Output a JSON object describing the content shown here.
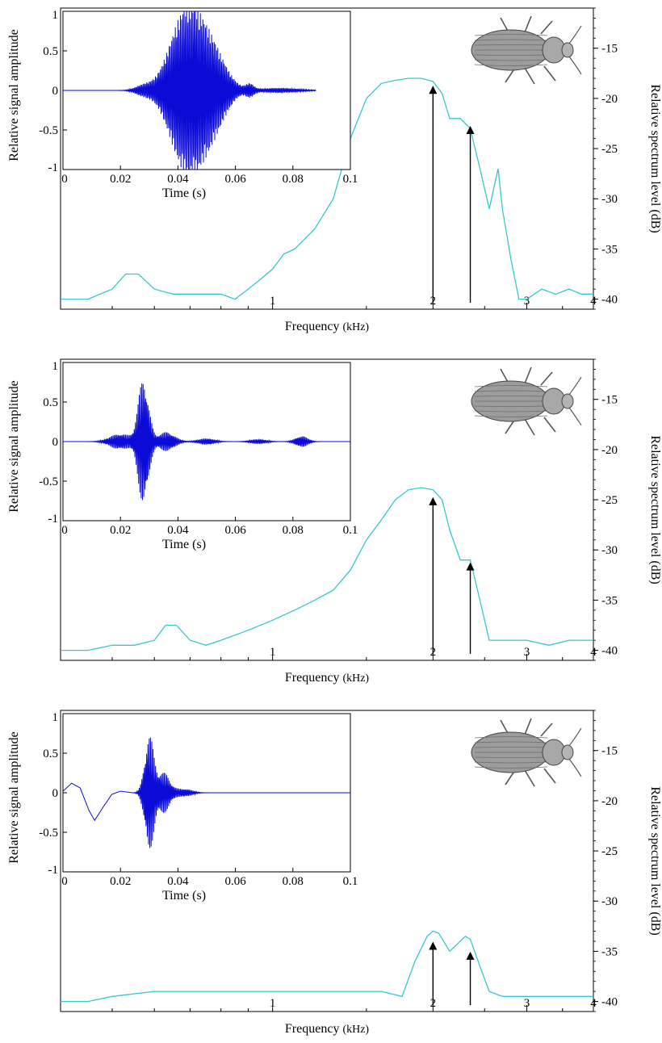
{
  "chart_data": [
    {
      "type": "line",
      "panel": "top",
      "spectrum": {
        "xlabel_main": "Frequency",
        "xlabel_unit": "(kHz)",
        "ylabel": "Relative spectrum level (dB)",
        "x_scale": "log",
        "xlim": [
          0.4,
          4
        ],
        "ylim": [
          -41,
          -11
        ],
        "xticks": [
          1,
          2,
          3,
          4
        ],
        "xtick_labels": [
          "1",
          "2",
          "3",
          "4"
        ],
        "yticks": [
          -15,
          -20,
          -25,
          -30,
          -35,
          -40
        ],
        "ytick_labels": [
          "-15",
          "-20",
          "-25",
          "-30",
          "-35",
          "-40"
        ],
        "x": [
          0.4,
          0.45,
          0.5,
          0.53,
          0.56,
          0.6,
          0.65,
          0.7,
          0.75,
          0.8,
          0.85,
          0.9,
          0.95,
          1.0,
          1.05,
          1.1,
          1.2,
          1.3,
          1.4,
          1.5,
          1.6,
          1.7,
          1.8,
          1.9,
          2.0,
          2.08,
          2.15,
          2.25,
          2.35,
          2.45,
          2.55,
          2.6,
          2.65,
          2.7,
          2.8,
          2.9,
          3.0,
          3.2,
          3.4,
          3.6,
          3.8,
          4.0
        ],
        "y": [
          -40,
          -40,
          -39,
          -37.5,
          -37.5,
          -39,
          -39.5,
          -39.5,
          -39.5,
          -39.5,
          -40,
          -39,
          -38,
          -37,
          -35.5,
          -35,
          -33,
          -30,
          -24,
          -20,
          -18.5,
          -18.2,
          -18.0,
          -18.0,
          -18.3,
          -19.5,
          -22,
          -22,
          -23,
          -27,
          -31,
          -29,
          -27,
          -31,
          -36,
          -40,
          -40,
          -39,
          -39.5,
          -39,
          -39.5,
          -39.5
        ],
        "arrows": [
          2.0,
          2.35
        ],
        "arrow_levels": [
          -18.5,
          -22.5
        ]
      },
      "inset": {
        "xlabel": "Time (s)",
        "ylabel": "Relative signal amplitude",
        "xlim": [
          0,
          0.1
        ],
        "ylim": [
          -1,
          1
        ],
        "xticks": [
          0,
          0.02,
          0.04,
          0.06,
          0.08,
          0.1
        ],
        "xtick_labels": [
          "0",
          "0.02",
          "0.04",
          "0.06",
          "0.08",
          "0.1"
        ],
        "yticks": [
          1,
          0.5,
          0,
          -0.5,
          -1
        ],
        "ytick_labels": [
          "1",
          "0.5",
          "0",
          "-0.5",
          "-1"
        ],
        "bursts": [
          {
            "center": 0.028,
            "width": 0.004,
            "amp": 0.06
          },
          {
            "center": 0.043,
            "width": 0.008,
            "amp": 1.0
          },
          {
            "center": 0.052,
            "width": 0.007,
            "amp": 0.42
          },
          {
            "center": 0.065,
            "width": 0.002,
            "amp": 0.07
          },
          {
            "center": 0.075,
            "width": 0.01,
            "amp": 0.03
          }
        ]
      }
    },
    {
      "type": "line",
      "panel": "middle",
      "spectrum": {
        "xlabel_main": "Frequency",
        "xlabel_unit": "(kHz)",
        "ylabel": "Relative spectrum level (dB)",
        "x_scale": "log",
        "xlim": [
          0.4,
          4
        ],
        "ylim": [
          -41,
          -11
        ],
        "xticks": [
          1,
          2,
          3,
          4
        ],
        "xtick_labels": [
          "1",
          "2",
          "3",
          "4"
        ],
        "yticks": [
          -15,
          -20,
          -25,
          -30,
          -35,
          -40
        ],
        "ytick_labels": [
          "-15",
          "-20",
          "-25",
          "-30",
          "-35",
          "-40"
        ],
        "x": [
          0.4,
          0.45,
          0.5,
          0.55,
          0.6,
          0.63,
          0.66,
          0.7,
          0.75,
          0.8,
          0.9,
          1.0,
          1.1,
          1.2,
          1.3,
          1.4,
          1.5,
          1.6,
          1.7,
          1.8,
          1.9,
          2.0,
          2.08,
          2.15,
          2.25,
          2.35,
          2.45,
          2.55,
          2.6,
          2.8,
          3.0,
          3.3,
          3.6,
          4.0
        ],
        "y": [
          -40,
          -40,
          -39.5,
          -39.5,
          -39,
          -37.5,
          -37.5,
          -39,
          -39.5,
          -39,
          -38,
          -37,
          -36,
          -35,
          -34,
          -32,
          -29,
          -27,
          -25,
          -24,
          -23.8,
          -24,
          -25,
          -28,
          -31,
          -31,
          -35,
          -39,
          -39,
          -39,
          -39,
          -39.5,
          -39,
          -39
        ],
        "arrows": [
          2.0,
          2.35
        ],
        "arrow_levels": [
          -24.5,
          -31
        ]
      },
      "inset": {
        "xlabel": "Time (s)",
        "ylabel": "Relative signal amplitude",
        "xlim": [
          0,
          0.1
        ],
        "ylim": [
          -1,
          1
        ],
        "xticks": [
          0,
          0.02,
          0.04,
          0.06,
          0.08,
          0.1
        ],
        "xtick_labels": [
          "0",
          "0.02",
          "0.04",
          "0.06",
          "0.08",
          "0.1"
        ],
        "yticks": [
          1,
          0.5,
          0,
          -0.5,
          -1
        ],
        "ytick_labels": [
          "1",
          "0.5",
          "0",
          "-0.5",
          "-1"
        ],
        "bursts": [
          {
            "center": 0.02,
            "width": 0.005,
            "amp": 0.1
          },
          {
            "center": 0.028,
            "width": 0.0025,
            "amp": 0.8
          },
          {
            "center": 0.036,
            "width": 0.004,
            "amp": 0.12
          },
          {
            "center": 0.05,
            "width": 0.004,
            "amp": 0.04
          },
          {
            "center": 0.068,
            "width": 0.004,
            "amp": 0.03
          },
          {
            "center": 0.083,
            "width": 0.003,
            "amp": 0.07
          }
        ]
      }
    },
    {
      "type": "line",
      "panel": "bottom",
      "spectrum": {
        "xlabel_main": "Frequency",
        "xlabel_unit": "(kHz)",
        "ylabel": "Relative spectrum level (dB)",
        "x_scale": "log",
        "xlim": [
          0.4,
          4
        ],
        "ylim": [
          -41,
          -11
        ],
        "xticks": [
          1,
          2,
          3,
          4
        ],
        "xtick_labels": [
          "1",
          "2",
          "3",
          "4"
        ],
        "yticks": [
          -15,
          -20,
          -25,
          -30,
          -35,
          -40
        ],
        "ytick_labels": [
          "-15",
          "-20",
          "-25",
          "-30",
          "-35",
          "-40"
        ],
        "x": [
          0.4,
          0.45,
          0.5,
          0.6,
          0.7,
          0.8,
          0.9,
          1.0,
          1.2,
          1.4,
          1.6,
          1.75,
          1.85,
          1.95,
          2.0,
          2.05,
          2.15,
          2.25,
          2.3,
          2.35,
          2.45,
          2.55,
          2.7,
          2.9,
          3.2,
          3.5,
          4.0
        ],
        "y": [
          -40,
          -40,
          -39.5,
          -39,
          -39,
          -39,
          -39,
          -39,
          -39,
          -39,
          -39,
          -39.5,
          -36,
          -33.5,
          -33,
          -33.2,
          -35,
          -34,
          -33.5,
          -33.8,
          -36.5,
          -39,
          -39.5,
          -39.5,
          -39.5,
          -39.5,
          -39.5
        ],
        "arrows": [
          2.0,
          2.35
        ],
        "arrow_levels": [
          -33.8,
          -34.8
        ]
      },
      "inset": {
        "xlabel": "Time (s)",
        "ylabel": "Relative signal amplitude",
        "xlim": [
          0,
          0.1
        ],
        "ylim": [
          -1,
          1
        ],
        "xticks": [
          0,
          0.02,
          0.04,
          0.06,
          0.08,
          0.1
        ],
        "xtick_labels": [
          "0",
          "0.02",
          "0.04",
          "0.06",
          "0.08",
          "0.1"
        ],
        "yticks": [
          1,
          0.5,
          0,
          -0.5,
          -1
        ],
        "ytick_labels": [
          "1",
          "0.5",
          "0",
          "-0.5",
          "-1"
        ],
        "baseline_wave": {
          "x": [
            0,
            0.003,
            0.006,
            0.009,
            0.011,
            0.014,
            0.017,
            0.02,
            0.024,
            0.1
          ],
          "y": [
            0.02,
            0.12,
            0.06,
            -0.22,
            -0.35,
            -0.18,
            -0.02,
            0.02,
            0.0,
            0.0
          ]
        },
        "bursts": [
          {
            "center": 0.03,
            "width": 0.0022,
            "amp": 0.72
          },
          {
            "center": 0.035,
            "width": 0.003,
            "amp": 0.25
          },
          {
            "center": 0.042,
            "width": 0.004,
            "amp": 0.05
          }
        ]
      }
    }
  ]
}
